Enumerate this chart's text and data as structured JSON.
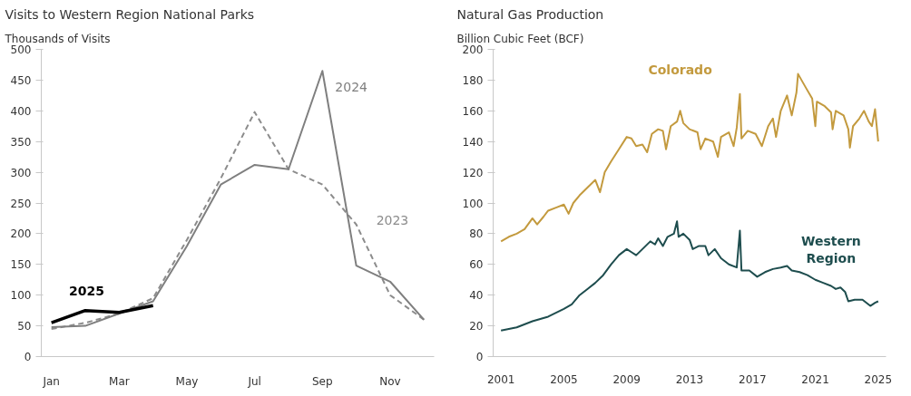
{
  "chart_data": [
    {
      "type": "line",
      "title": "Visits to Western Region National Parks",
      "subtitle": "Thousands of Visits",
      "categories": [
        "Jan",
        null,
        "Mar",
        null,
        "May",
        null,
        "Jul",
        null,
        "Sep",
        null,
        "Nov",
        null
      ],
      "series": [
        {
          "name": "2023",
          "color": "#8c8c8c",
          "line_style": "dashed",
          "values": [
            45,
            55,
            70,
            95,
            190,
            290,
            398,
            305,
            280,
            215,
            100,
            60
          ]
        },
        {
          "name": "2024",
          "color": "#7f7f7f",
          "line_style": "solid",
          "values": [
            48,
            50,
            70,
            90,
            180,
            280,
            312,
            305,
            465,
            148,
            122,
            60
          ]
        },
        {
          "name": "2025",
          "color": "#000000",
          "line_style": "solid",
          "values": [
            55,
            75,
            72,
            83,
            null,
            null,
            null,
            null,
            null,
            null,
            null,
            null
          ]
        }
      ],
      "ylim": [
        0,
        500
      ],
      "yticks": [
        0,
        50,
        100,
        150,
        200,
        250,
        300,
        350,
        400,
        450,
        500
      ],
      "grid": false,
      "legend": false
    },
    {
      "type": "line",
      "title": "Natural Gas Production",
      "subtitle": "Billion Cubic Feet (BCF)",
      "series": [
        {
          "name": "Colorado",
          "color": "#c39a3e",
          "x": [
            2001,
            2001.5,
            2002,
            2002.5,
            2003,
            2003.3,
            2003.7,
            2004,
            2004.5,
            2005,
            2005.3,
            2005.6,
            2006,
            2006.5,
            2007,
            2007.3,
            2007.6,
            2008,
            2008.5,
            2009,
            2009.3,
            2009.6,
            2010,
            2010.3,
            2010.6,
            2011,
            2011.3,
            2011.5,
            2011.8,
            2012.2,
            2012.4,
            2012.6,
            2013,
            2013.5,
            2013.7,
            2014,
            2014.5,
            2014.8,
            2015,
            2015.5,
            2015.8,
            2016,
            2016.2,
            2016.3,
            2016.7,
            2017.2,
            2017.6,
            2018,
            2018.3,
            2018.5,
            2018.8,
            2019.2,
            2019.5,
            2019.8,
            2019.9,
            2020.4,
            2020.8,
            2021.0,
            2021.1,
            2021.6,
            2022.0,
            2022.1,
            2022.3,
            2022.8,
            2023.1,
            2023.2,
            2023.4,
            2023.8,
            2024.1,
            2024.4,
            2024.6,
            2024.8,
            2025.0
          ],
          "values": [
            75,
            78,
            80,
            83,
            90,
            86,
            91,
            95,
            97,
            99,
            93,
            100,
            105,
            110,
            115,
            107,
            120,
            127,
            135,
            143,
            142,
            137,
            138,
            133,
            145,
            148,
            147,
            135,
            150,
            153,
            160,
            152,
            148,
            146,
            135,
            142,
            140,
            130,
            143,
            146,
            137,
            149,
            171,
            142,
            147,
            145,
            137,
            150,
            155,
            143,
            160,
            170,
            157,
            172,
            184,
            175,
            168,
            150,
            166,
            163,
            159,
            148,
            160,
            157,
            148,
            136,
            150,
            155,
            160,
            153,
            150,
            161,
            140
          ]
        },
        {
          "name": "Western Region",
          "color": "#1e4d4e",
          "x": [
            2001,
            2002,
            2003,
            2004,
            2005,
            2005.5,
            2006,
            2006.5,
            2007,
            2007.5,
            2008,
            2008.5,
            2009,
            2009.3,
            2009.6,
            2010,
            2010.5,
            2010.8,
            2011,
            2011.3,
            2011.6,
            2012,
            2012.2,
            2012.3,
            2012.6,
            2013,
            2013.2,
            2013.6,
            2014,
            2014.2,
            2014.6,
            2015,
            2015.5,
            2016,
            2016.2,
            2016.3,
            2016.8,
            2017.3,
            2017.8,
            2018.3,
            2018.8,
            2019.2,
            2019.5,
            2020,
            2020.5,
            2021,
            2021.5,
            2022,
            2022.3,
            2022.6,
            2022.9,
            2023.1,
            2023.5,
            2024,
            2024.5,
            2024.8,
            2025
          ],
          "values": [
            17,
            19,
            23,
            26,
            31,
            34,
            40,
            44,
            48,
            53,
            60,
            66,
            70,
            68,
            66,
            70,
            75,
            73,
            77,
            72,
            78,
            80,
            88,
            78,
            80,
            76,
            70,
            72,
            72,
            66,
            70,
            64,
            60,
            58,
            82,
            56,
            56,
            52,
            55,
            57,
            58,
            59,
            56,
            55,
            53,
            50,
            48,
            46,
            44,
            45,
            42,
            36,
            37,
            37,
            33,
            35,
            36
          ]
        }
      ],
      "xlim": [
        2000.5,
        2025.5
      ],
      "xticks": [
        2001,
        2005,
        2009,
        2013,
        2017,
        2021,
        2025
      ],
      "ylim": [
        0,
        200
      ],
      "yticks": [
        0,
        20,
        40,
        60,
        80,
        100,
        120,
        140,
        160,
        180,
        200
      ],
      "grid": false,
      "legend": false
    }
  ]
}
